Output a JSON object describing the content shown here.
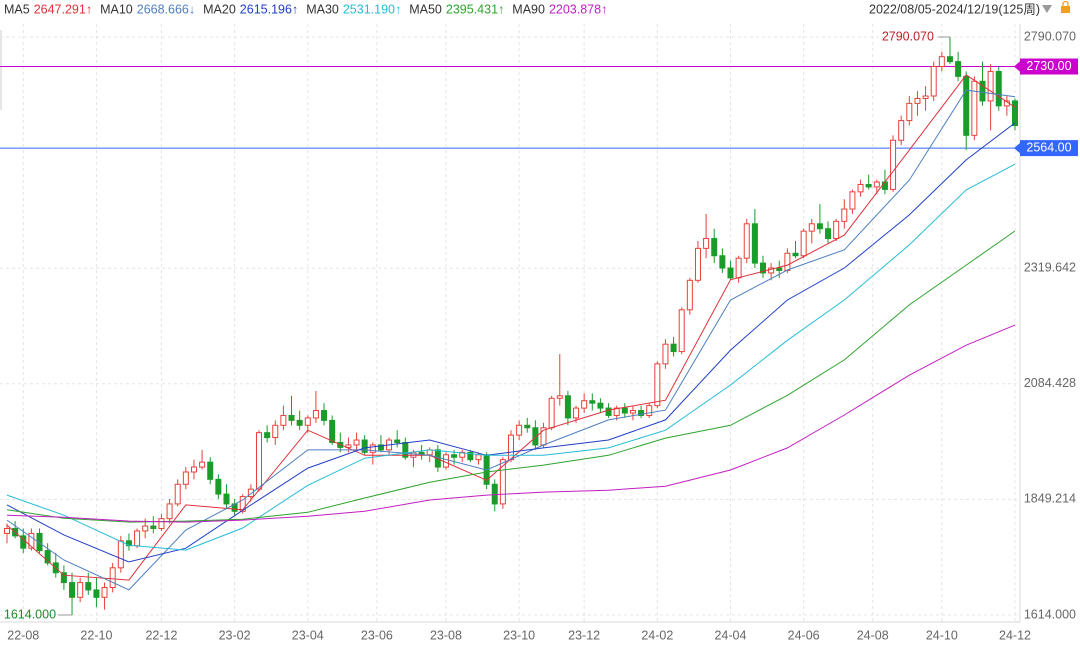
{
  "chart_data": {
    "type": "candlestick",
    "date_range": "2022/08/05-2024/12/19(125周)",
    "up_color": "#e8413a",
    "down_color": "#1a9c2a",
    "xlim": [
      0,
      124
    ],
    "ylim": [
      1614,
      2790.07
    ],
    "yticks": [
      {
        "value": 2790.07,
        "label": "2790.070"
      },
      2319.642,
      2084.428,
      1849.214,
      {
        "value": 1614,
        "label": "1614.000"
      }
    ],
    "xticks": [
      {
        "value": 2,
        "label": "22-08"
      },
      {
        "value": 11,
        "label": "22-10"
      },
      {
        "value": 19,
        "label": "22-12"
      },
      {
        "value": 28,
        "label": "23-02"
      },
      {
        "value": 37,
        "label": "23-04"
      },
      {
        "value": 45.5,
        "label": "23-06"
      },
      {
        "value": 54,
        "label": "23-08"
      },
      {
        "value": 63,
        "label": "23-10"
      },
      {
        "value": 71,
        "label": "23-12"
      },
      {
        "value": 80,
        "label": "24-02"
      },
      {
        "value": 89,
        "label": "24-04"
      },
      {
        "value": 98,
        "label": "24-06"
      },
      {
        "value": 106.5,
        "label": "24-08"
      },
      {
        "value": 115,
        "label": "24-10"
      },
      {
        "value": 124,
        "label": "24-12"
      }
    ],
    "grid": true,
    "candles": [
      [
        1780,
        1800,
        1760,
        1790
      ],
      [
        1790,
        1805,
        1770,
        1775
      ],
      [
        1775,
        1790,
        1740,
        1750
      ],
      [
        1750,
        1790,
        1745,
        1780
      ],
      [
        1780,
        1790,
        1740,
        1745
      ],
      [
        1745,
        1760,
        1715,
        1720
      ],
      [
        1720,
        1740,
        1690,
        1700
      ],
      [
        1700,
        1715,
        1665,
        1680
      ],
      [
        1680,
        1700,
        1614,
        1650
      ],
      [
        1650,
        1690,
        1640,
        1680
      ],
      [
        1680,
        1700,
        1655,
        1665
      ],
      [
        1665,
        1690,
        1630,
        1650
      ],
      [
        1650,
        1680,
        1625,
        1670
      ],
      [
        1670,
        1720,
        1660,
        1710
      ],
      [
        1710,
        1775,
        1700,
        1765
      ],
      [
        1765,
        1780,
        1745,
        1755
      ],
      [
        1755,
        1790,
        1750,
        1785
      ],
      [
        1785,
        1810,
        1770,
        1795
      ],
      [
        1795,
        1815,
        1780,
        1790
      ],
      [
        1790,
        1820,
        1785,
        1810
      ],
      [
        1810,
        1850,
        1800,
        1840
      ],
      [
        1840,
        1890,
        1835,
        1880
      ],
      [
        1880,
        1915,
        1870,
        1905
      ],
      [
        1905,
        1930,
        1890,
        1915
      ],
      [
        1915,
        1950,
        1910,
        1925
      ],
      [
        1925,
        1935,
        1880,
        1890
      ],
      [
        1890,
        1900,
        1850,
        1860
      ],
      [
        1860,
        1880,
        1830,
        1840
      ],
      [
        1840,
        1850,
        1815,
        1825
      ],
      [
        1825,
        1860,
        1820,
        1855
      ],
      [
        1855,
        1880,
        1845,
        1870
      ],
      [
        1870,
        1990,
        1865,
        1985
      ],
      [
        1985,
        2000,
        1965,
        1975
      ],
      [
        1975,
        2010,
        1960,
        2000
      ],
      [
        2000,
        2040,
        1990,
        2020
      ],
      [
        2020,
        2060,
        2000,
        2010
      ],
      [
        2010,
        2030,
        1990,
        2000
      ],
      [
        2000,
        2020,
        1985,
        2015
      ],
      [
        2015,
        2070,
        2005,
        2030
      ],
      [
        2030,
        2045,
        2000,
        2010
      ],
      [
        2010,
        2020,
        1960,
        1965
      ],
      [
        1965,
        1985,
        1945,
        1955
      ],
      [
        1955,
        1975,
        1945,
        1960
      ],
      [
        1960,
        1985,
        1950,
        1970
      ],
      [
        1970,
        1980,
        1940,
        1945
      ],
      [
        1945,
        1965,
        1920,
        1960
      ],
      [
        1960,
        1980,
        1945,
        1950
      ],
      [
        1950,
        1975,
        1940,
        1970
      ],
      [
        1970,
        1990,
        1955,
        1965
      ],
      [
        1965,
        1975,
        1930,
        1935
      ],
      [
        1935,
        1950,
        1915,
        1945
      ],
      [
        1945,
        1960,
        1930,
        1940
      ],
      [
        1940,
        1955,
        1925,
        1950
      ],
      [
        1950,
        1960,
        1905,
        1915
      ],
      [
        1915,
        1945,
        1910,
        1940
      ],
      [
        1940,
        1950,
        1920,
        1935
      ],
      [
        1935,
        1950,
        1925,
        1945
      ],
      [
        1945,
        1950,
        1925,
        1930
      ],
      [
        1930,
        1945,
        1920,
        1940
      ],
      [
        1940,
        1945,
        1870,
        1880
      ],
      [
        1880,
        1890,
        1825,
        1840
      ],
      [
        1840,
        1935,
        1830,
        1930
      ],
      [
        1930,
        1990,
        1925,
        1980
      ],
      [
        1980,
        2010,
        1970,
        2000
      ],
      [
        2000,
        2015,
        1985,
        1995
      ],
      [
        1995,
        2010,
        1950,
        1960
      ],
      [
        1960,
        2005,
        1955,
        1995
      ],
      [
        1995,
        2060,
        1990,
        2055
      ],
      [
        2055,
        2145,
        2040,
        2060
      ],
      [
        2060,
        2070,
        2000,
        2015
      ],
      [
        2015,
        2040,
        2005,
        2035
      ],
      [
        2035,
        2065,
        2025,
        2050
      ],
      [
        2050,
        2065,
        2030,
        2045
      ],
      [
        2045,
        2055,
        2025,
        2035
      ],
      [
        2035,
        2045,
        2015,
        2020
      ],
      [
        2020,
        2040,
        2010,
        2035
      ],
      [
        2035,
        2045,
        2015,
        2025
      ],
      [
        2025,
        2040,
        2010,
        2030
      ],
      [
        2030,
        2040,
        2015,
        2020
      ],
      [
        2020,
        2045,
        2015,
        2040
      ],
      [
        2040,
        2130,
        2035,
        2125
      ],
      [
        2125,
        2175,
        2115,
        2165
      ],
      [
        2165,
        2180,
        2140,
        2150
      ],
      [
        2150,
        2240,
        2145,
        2235
      ],
      [
        2235,
        2300,
        2225,
        2295
      ],
      [
        2295,
        2375,
        2290,
        2360
      ],
      [
        2360,
        2430,
        2340,
        2380
      ],
      [
        2380,
        2400,
        2330,
        2345
      ],
      [
        2345,
        2360,
        2310,
        2320
      ],
      [
        2320,
        2335,
        2295,
        2300
      ],
      [
        2300,
        2345,
        2290,
        2340
      ],
      [
        2340,
        2420,
        2330,
        2410
      ],
      [
        2410,
        2440,
        2320,
        2330
      ],
      [
        2330,
        2345,
        2300,
        2310
      ],
      [
        2310,
        2330,
        2295,
        2320
      ],
      [
        2320,
        2335,
        2300,
        2315
      ],
      [
        2315,
        2360,
        2310,
        2350
      ],
      [
        2350,
        2375,
        2340,
        2345
      ],
      [
        2345,
        2400,
        2340,
        2395
      ],
      [
        2395,
        2420,
        2370,
        2410
      ],
      [
        2410,
        2450,
        2390,
        2400
      ],
      [
        2400,
        2415,
        2370,
        2380
      ],
      [
        2380,
        2420,
        2375,
        2415
      ],
      [
        2415,
        2460,
        2400,
        2440
      ],
      [
        2440,
        2480,
        2430,
        2475
      ],
      [
        2475,
        2500,
        2465,
        2490
      ],
      [
        2490,
        2510,
        2480,
        2485
      ],
      [
        2485,
        2500,
        2470,
        2495
      ],
      [
        2495,
        2520,
        2470,
        2480
      ],
      [
        2480,
        2590,
        2475,
        2580
      ],
      [
        2580,
        2630,
        2570,
        2620
      ],
      [
        2620,
        2670,
        2610,
        2655
      ],
      [
        2655,
        2680,
        2630,
        2665
      ],
      [
        2665,
        2690,
        2640,
        2670
      ],
      [
        2670,
        2740,
        2660,
        2730
      ],
      [
        2730,
        2760,
        2720,
        2750
      ],
      [
        2750,
        2790.07,
        2735,
        2740
      ],
      [
        2740,
        2760,
        2700,
        2710
      ],
      [
        2710,
        2720,
        2560,
        2590
      ],
      [
        2590,
        2710,
        2580,
        2700
      ],
      [
        2700,
        2740,
        2650,
        2660
      ],
      [
        2660,
        2735,
        2600,
        2720
      ],
      [
        2720,
        2730,
        2640,
        2650
      ],
      [
        2650,
        2670,
        2630,
        2660
      ],
      [
        2660,
        2665,
        2600,
        2610
      ]
    ],
    "series": [
      {
        "name": "MA5",
        "value_label": "2647.291↑",
        "color": "#e0303a",
        "x": [
          0,
          7,
          15,
          22,
          29,
          37,
          44,
          52,
          59,
          66,
          74,
          81,
          89,
          96,
          103,
          111,
          118,
          124
        ],
        "values": [
          1797,
          1695,
          1685,
          1838,
          1828,
          1990,
          1939,
          1939,
          1888,
          1990,
          2031,
          2051,
          2296,
          2326,
          2387,
          2560,
          2713,
          2647.291
        ]
      },
      {
        "name": "MA10",
        "value_label": "2668.666↓",
        "color": "#4f7fc0",
        "x": [
          0,
          7,
          15,
          22,
          29,
          37,
          44,
          52,
          59,
          66,
          74,
          81,
          89,
          96,
          103,
          111,
          118,
          124
        ],
        "values": [
          1807,
          1726,
          1665,
          1787,
          1848,
          1950,
          1950,
          1939,
          1909,
          1960,
          2011,
          2031,
          2255,
          2316,
          2357,
          2499,
          2682,
          2668.666
        ]
      },
      {
        "name": "MA20",
        "value_label": "2615.196↑",
        "color": "#1f3fc8",
        "x": [
          0,
          7,
          15,
          22,
          29,
          37,
          44,
          52,
          59,
          66,
          74,
          81,
          89,
          96,
          103,
          111,
          118,
          124
        ],
        "values": [
          1838,
          1777,
          1722,
          1750,
          1827,
          1913,
          1954,
          1970,
          1939,
          1954,
          1970,
          2011,
          2153,
          2255,
          2320,
          2428,
          2540,
          2615.196
        ]
      },
      {
        "name": "MA30",
        "value_label": "2531.190↑",
        "color": "#26bcd6",
        "x": [
          0,
          7,
          15,
          22,
          29,
          37,
          44,
          52,
          59,
          66,
          74,
          81,
          89,
          96,
          103,
          111,
          118,
          124
        ],
        "values": [
          1858,
          1817,
          1756,
          1746,
          1791,
          1878,
          1933,
          1950,
          1939,
          1939,
          1954,
          1990,
          2082,
          2173,
          2255,
          2367,
          2479,
          2531.19
        ]
      },
      {
        "name": "MA50",
        "value_label": "2395.431↑",
        "color": "#2ea32e",
        "x": [
          0,
          7,
          15,
          22,
          29,
          37,
          44,
          52,
          59,
          66,
          74,
          81,
          89,
          96,
          103,
          111,
          118,
          124
        ],
        "values": [
          1828,
          1811,
          1803,
          1805,
          1809,
          1823,
          1852,
          1884,
          1905,
          1919,
          1939,
          1974,
          2000,
          2061,
          2133,
          2245,
          2326,
          2395.431
        ]
      },
      {
        "name": "MA90",
        "value_label": "2203.878↑",
        "color": "#c21ec2",
        "x": [
          0,
          7,
          15,
          22,
          29,
          37,
          44,
          52,
          59,
          66,
          74,
          81,
          89,
          96,
          103,
          111,
          118,
          124
        ],
        "values": [
          1817,
          1813,
          1805,
          1803,
          1807,
          1815,
          1825,
          1848,
          1858,
          1864,
          1868,
          1876,
          1909,
          1954,
          2021,
          2102,
          2163,
          2203.878
        ]
      }
    ],
    "price_lines": [
      {
        "value": 2730,
        "label": "2730.00",
        "color": "#cc00cc"
      },
      {
        "value": 2564,
        "label": "2564.00",
        "color": "#3366ff"
      }
    ],
    "annotations": [
      {
        "x": 116,
        "value": 2790.07,
        "label": "2790.070",
        "color": "#c0202a"
      },
      {
        "x": 8,
        "value": 1614,
        "label": "1614.000",
        "color": "#1a8c2a"
      }
    ]
  }
}
